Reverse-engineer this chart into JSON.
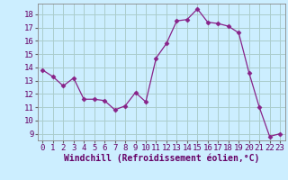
{
  "x": [
    0,
    1,
    2,
    3,
    4,
    5,
    6,
    7,
    8,
    9,
    10,
    11,
    12,
    13,
    14,
    15,
    16,
    17,
    18,
    19,
    20,
    21,
    22,
    23
  ],
  "y": [
    13.8,
    13.3,
    12.6,
    13.2,
    11.6,
    11.6,
    11.5,
    10.8,
    11.1,
    12.1,
    11.4,
    14.7,
    15.8,
    17.5,
    17.6,
    18.4,
    17.4,
    17.3,
    17.1,
    16.6,
    13.6,
    11.0,
    8.8,
    9.0
  ],
  "line_color": "#882288",
  "marker": "D",
  "marker_size": 2.5,
  "bg_color": "#cceeff",
  "grid_color": "#aacccc",
  "xlabel": "Windchill (Refroidissement éolien,°C)",
  "xlabel_fontsize": 7,
  "tick_fontsize": 6.5,
  "ylim": [
    8.5,
    18.8
  ],
  "xlim": [
    -0.5,
    23.5
  ],
  "yticks": [
    9,
    10,
    11,
    12,
    13,
    14,
    15,
    16,
    17,
    18
  ],
  "xticks": [
    0,
    1,
    2,
    3,
    4,
    5,
    6,
    7,
    8,
    9,
    10,
    11,
    12,
    13,
    14,
    15,
    16,
    17,
    18,
    19,
    20,
    21,
    22,
    23
  ]
}
